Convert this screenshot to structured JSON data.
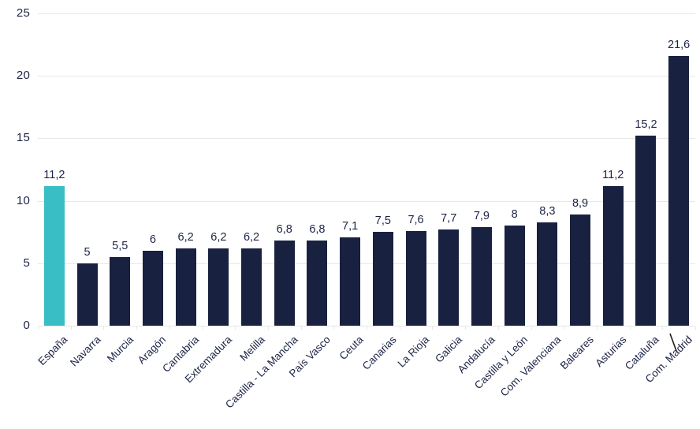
{
  "chart_data": {
    "type": "bar",
    "title": "",
    "xlabel": "",
    "ylabel": "",
    "categories": [
      "España",
      "Navarra",
      "Murcia",
      "Aragón",
      "Cantabria",
      "Extremadura",
      "Melilla",
      "Castilla - La Mancha",
      "País Vasco",
      "Ceuta",
      "Canarias",
      "La Rioja",
      "Galicia",
      "Andalucía",
      "Castilla y León",
      "Com. Valenciana",
      "Baleares",
      "Asturias",
      "Cataluña",
      "Com. Madrid"
    ],
    "values": [
      11.2,
      5,
      5.5,
      6,
      6.2,
      6.2,
      6.2,
      6.8,
      6.8,
      7.1,
      7.5,
      7.6,
      7.7,
      7.9,
      8,
      8.3,
      8.9,
      11.2,
      15.2,
      21.6
    ],
    "value_labels": [
      "11,2",
      "5",
      "5,5",
      "6",
      "6,2",
      "6,2",
      "6,2",
      "6,8",
      "6,8",
      "7,1",
      "7,5",
      "7,6",
      "7,7",
      "7,9",
      "8",
      "8,3",
      "8,9",
      "11,2",
      "15,2",
      "21,6"
    ],
    "highlight_index": 0,
    "highlight_category": "España",
    "ylim": [
      0,
      25
    ],
    "y_ticks": [
      0,
      5,
      10,
      15,
      20,
      25
    ],
    "y_tick_labels": [
      "0",
      "5",
      "10",
      "15",
      "20",
      "25"
    ],
    "grid": true,
    "legend": false,
    "colors": {
      "highlight_bar": "#3ABEC6",
      "default_bar": "#192140",
      "gridline": "#E7E7E7",
      "text": "#1C2445",
      "background": "#FFFFFF"
    }
  }
}
